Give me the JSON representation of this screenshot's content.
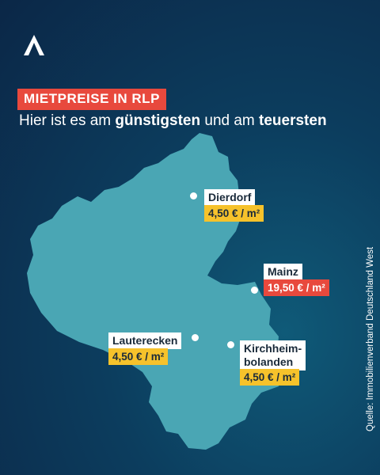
{
  "header": {
    "logo": "a-logo-icon",
    "badge": "MIETPREISE IN RLP",
    "subtitle_part1": "Hier ist es am ",
    "subtitle_bold1": "günstigsten",
    "subtitle_part2": " und am ",
    "subtitle_bold2": "teuersten"
  },
  "colors": {
    "map_fill": "#4aa6b4",
    "cheap": "#f6c22b",
    "expensive": "#e8493d"
  },
  "places": [
    {
      "name": "Dierdorf",
      "price": "4,50 € / m²",
      "category": "cheap"
    },
    {
      "name": "Mainz",
      "price": "19,50 € / m²",
      "category": "expensive"
    },
    {
      "name": "Lauterecken",
      "price": "4,50 € / m²",
      "category": "cheap"
    },
    {
      "name": "Kirchheim-",
      "name_line2": "bolanden",
      "price": "4,50 € / m²",
      "category": "cheap"
    }
  ],
  "source": "Quelle: Immobilienverband Deutschland West"
}
